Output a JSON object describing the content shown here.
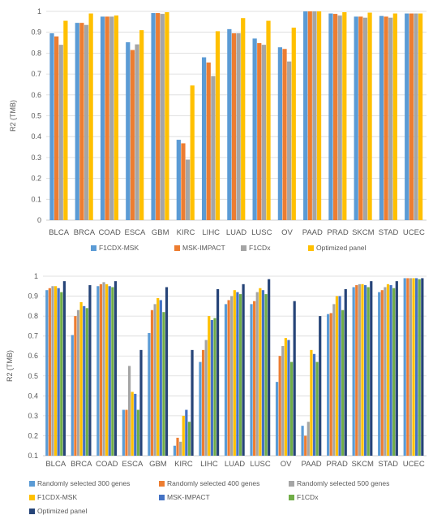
{
  "chart_data": [
    {
      "type": "bar",
      "ylabel": "R2 (TMB)",
      "ylim": [
        0,
        1
      ],
      "yticks": [
        0,
        0.1,
        0.2,
        0.3,
        0.4,
        0.5,
        0.6,
        0.7,
        0.8,
        0.9,
        1
      ],
      "grid": true,
      "legend": "bottom",
      "categories": [
        "BLCA",
        "BRCA",
        "COAD",
        "ESCA",
        "GBM",
        "KIRC",
        "LIHC",
        "LUAD",
        "LUSC",
        "OV",
        "PAAD",
        "PRAD",
        "SKCM",
        "STAD",
        "UCEC"
      ],
      "series": [
        {
          "name": "F1CDX-MSK",
          "color": "#5b9bd5",
          "values": [
            0.895,
            0.945,
            0.975,
            0.852,
            0.992,
            0.385,
            0.78,
            0.915,
            0.87,
            0.828,
            1.0,
            0.99,
            0.975,
            0.978,
            0.99
          ]
        },
        {
          "name": "MSK-IMPACT",
          "color": "#ed7d31",
          "values": [
            0.88,
            0.945,
            0.975,
            0.815,
            0.992,
            0.368,
            0.755,
            0.895,
            0.848,
            0.82,
            1.0,
            0.988,
            0.975,
            0.975,
            0.99
          ]
        },
        {
          "name": "F1CDx",
          "color": "#a5a5a5",
          "values": [
            0.84,
            0.935,
            0.975,
            0.842,
            0.988,
            0.29,
            0.69,
            0.895,
            0.84,
            0.76,
            1.0,
            0.98,
            0.97,
            0.97,
            0.99
          ]
        },
        {
          "name": "Optimized panel",
          "color": "#ffc000",
          "values": [
            0.955,
            0.99,
            0.98,
            0.91,
            0.996,
            0.645,
            0.905,
            0.968,
            0.955,
            0.922,
            1.0,
            0.996,
            0.994,
            0.99,
            0.99
          ]
        }
      ]
    },
    {
      "type": "bar",
      "ylabel": "R2 (TMB)",
      "ylim": [
        0.1,
        1
      ],
      "yticks": [
        0.1,
        0.2,
        0.3,
        0.4,
        0.5,
        0.6,
        0.7,
        0.8,
        0.9,
        1
      ],
      "grid": true,
      "legend": "bottom",
      "categories": [
        "BLCA",
        "BRCA",
        "COAD",
        "ESCA",
        "GBM",
        "KIRC",
        "LIHC",
        "LUAD",
        "LUSC",
        "OV",
        "PAAD",
        "PRAD",
        "SKCM",
        "STAD",
        "UCEC"
      ],
      "series": [
        {
          "name": "Randomly selected 300 genes",
          "color": "#5b9bd5",
          "values": [
            0.93,
            0.705,
            0.95,
            0.33,
            0.715,
            0.15,
            0.57,
            0.86,
            0.86,
            0.47,
            0.25,
            0.81,
            0.945,
            0.92,
            0.99
          ]
        },
        {
          "name": "Randomly selected 400 genes",
          "color": "#ed7d31",
          "values": [
            0.94,
            0.8,
            0.96,
            0.33,
            0.83,
            0.19,
            0.63,
            0.88,
            0.875,
            0.6,
            0.2,
            0.815,
            0.955,
            0.93,
            0.99
          ]
        },
        {
          "name": "Randomly selected 500 genes",
          "color": "#a5a5a5",
          "values": [
            0.95,
            0.83,
            0.97,
            0.55,
            0.86,
            0.17,
            0.68,
            0.9,
            0.92,
            0.65,
            0.27,
            0.86,
            0.96,
            0.945,
            0.99
          ]
        },
        {
          "name": "F1CDX-MSK",
          "color": "#ffc000",
          "values": [
            0.95,
            0.87,
            0.96,
            0.42,
            0.89,
            0.3,
            0.8,
            0.93,
            0.94,
            0.69,
            0.63,
            0.9,
            0.96,
            0.96,
            0.99
          ]
        },
        {
          "name": "MSK-IMPACT",
          "color": "#4472c4",
          "values": [
            0.94,
            0.85,
            0.95,
            0.41,
            0.88,
            0.33,
            0.78,
            0.92,
            0.93,
            0.68,
            0.61,
            0.9,
            0.955,
            0.955,
            0.99
          ]
        },
        {
          "name": "F1CDx",
          "color": "#70ad47",
          "values": [
            0.92,
            0.84,
            0.945,
            0.33,
            0.82,
            0.27,
            0.79,
            0.91,
            0.91,
            0.57,
            0.57,
            0.83,
            0.945,
            0.94,
            0.985
          ]
        },
        {
          "name": "Optimized panel",
          "color": "#264478",
          "values": [
            0.975,
            0.955,
            0.975,
            0.63,
            0.945,
            0.63,
            0.935,
            0.96,
            0.985,
            0.875,
            0.8,
            0.935,
            0.975,
            0.975,
            0.99
          ]
        }
      ]
    }
  ]
}
